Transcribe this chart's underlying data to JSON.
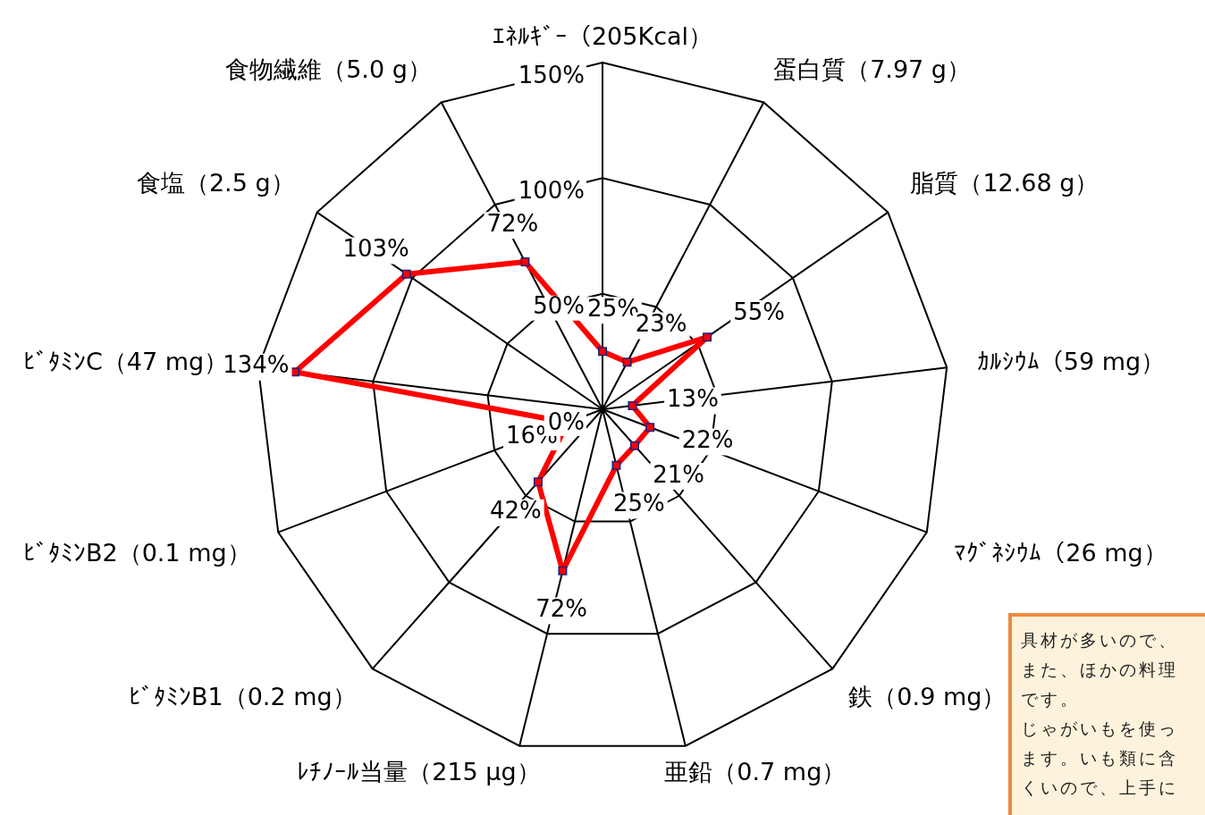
{
  "chart_data": {
    "type": "radar",
    "categories": [
      "ｴﾈﾙｷﾞｰ（205Kcal）",
      "蛋白質（7.97 g）",
      "脂質（12.68 g）",
      "ｶﾙｼｳﾑ（59 mg）",
      "ﾏｸﾞﾈｼｳﾑ（26 mg）",
      "鉄（0.9 mg）",
      "亜鉛（0.7 mg）",
      "ﾚﾁﾉｰﾙ当量（215 μg）",
      "ﾋﾞﾀﾐﾝB1（0.2 mg）",
      "ﾋﾞﾀﾐﾝB2（0.1 mg）",
      "ﾋﾞﾀﾐﾝC（47 mg）",
      "食塩（2.5 g）",
      "食物繊維（5.0 g）"
    ],
    "series": [
      {
        "color": "#ff0000",
        "values": [
          25,
          23,
          55,
          13,
          22,
          21,
          25,
          72,
          42,
          16,
          134,
          103,
          72
        ],
        "value_labels": [
          "25%",
          "23%",
          "55%",
          "13%",
          "22%",
          "21%",
          "25%",
          "72%",
          "42%",
          "16%",
          "134%",
          "103%",
          "72%"
        ]
      }
    ],
    "ylim": [
      0,
      150
    ],
    "yticks": [
      {
        "value": 0,
        "label": "0%"
      },
      {
        "value": 50,
        "label": "50%"
      },
      {
        "value": 100,
        "label": "100%"
      },
      {
        "value": 150,
        "label": "150%"
      }
    ],
    "grid": true,
    "legend": false,
    "marker": "square",
    "line_style": "solid",
    "annotations": [
      "具材が多いので、",
      "また、ほかの料理",
      "です。",
      "じゃがいもを使っ",
      "ます。いも類に含",
      "くいので、上手に"
    ]
  }
}
